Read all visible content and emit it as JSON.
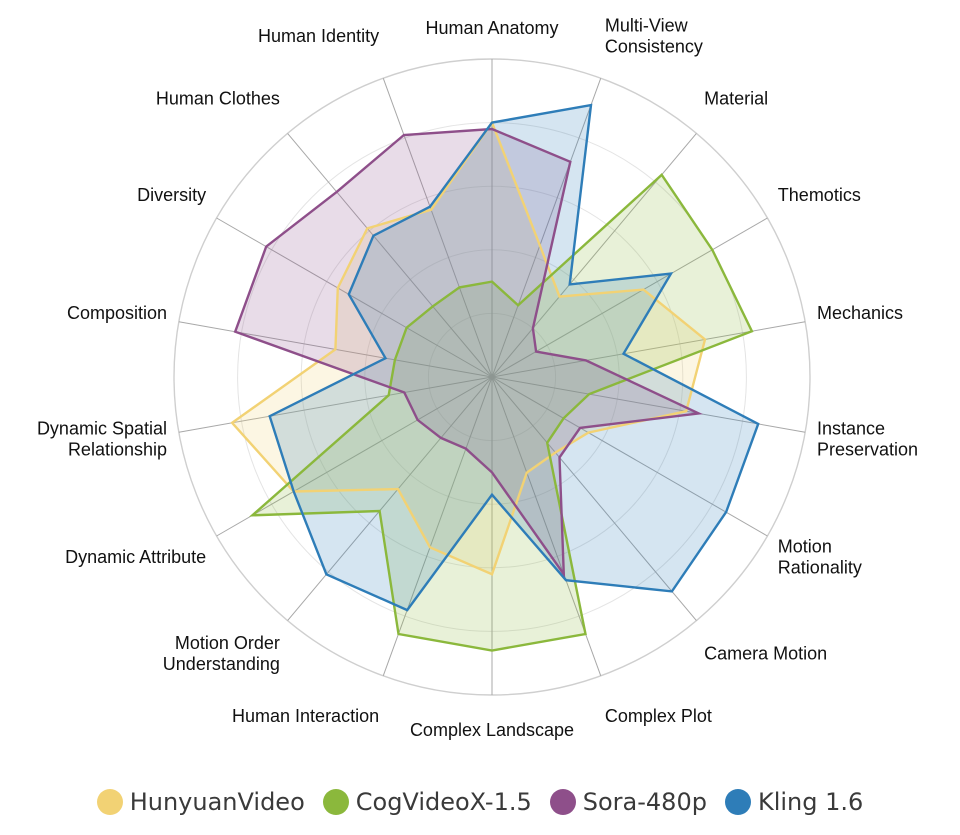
{
  "chart_data": {
    "type": "radar",
    "title": "",
    "axes": [
      "Human Anatomy",
      "Multi-View Consistency",
      "Material",
      "Themotics",
      "Mechanics",
      "Instance Preservation",
      "Motion Rationality",
      "Camera Motion",
      "Complex Plot",
      "Complex Landscape",
      "Human Interaction",
      "Motion Order Understanding",
      "Dynamic Attribute",
      "Dynamic Spatial Relationship",
      "Composition",
      "Diversity",
      "Human Clothes",
      "Human Identity"
    ],
    "rmax": 1.0,
    "grid_levels": 5,
    "series": [
      {
        "name": "HunyuanVideo",
        "color": "#f2d274",
        "values": [
          0.8,
          0.44,
          0.33,
          0.55,
          0.68,
          0.62,
          0.35,
          0.31,
          0.32,
          0.62,
          0.57,
          0.46,
          0.72,
          0.83,
          0.5,
          0.56,
          0.61,
          0.56
        ]
      },
      {
        "name": "CogVideoX-1.5",
        "color": "#8bb83c",
        "values": [
          0.3,
          0.24,
          0.83,
          0.8,
          0.83,
          0.31,
          0.26,
          0.27,
          0.86,
          0.86,
          0.86,
          0.55,
          0.87,
          0.33,
          0.31,
          0.31,
          0.29,
          0.3
        ]
      },
      {
        "name": "Sora-480p",
        "color": "#8e4f8a",
        "values": [
          0.78,
          0.72,
          0.2,
          0.16,
          0.3,
          0.66,
          0.32,
          0.33,
          0.66,
          0.3,
          0.24,
          0.25,
          0.27,
          0.28,
          0.82,
          0.82,
          0.76,
          0.81
        ]
      },
      {
        "name": "Kling 1.6",
        "color": "#2e7db8",
        "values": [
          0.8,
          0.91,
          0.38,
          0.65,
          0.42,
          0.85,
          0.85,
          0.88,
          0.68,
          0.37,
          0.78,
          0.81,
          0.72,
          0.71,
          0.34,
          0.52,
          0.58,
          0.57
        ]
      }
    ],
    "legend": "bottom"
  }
}
